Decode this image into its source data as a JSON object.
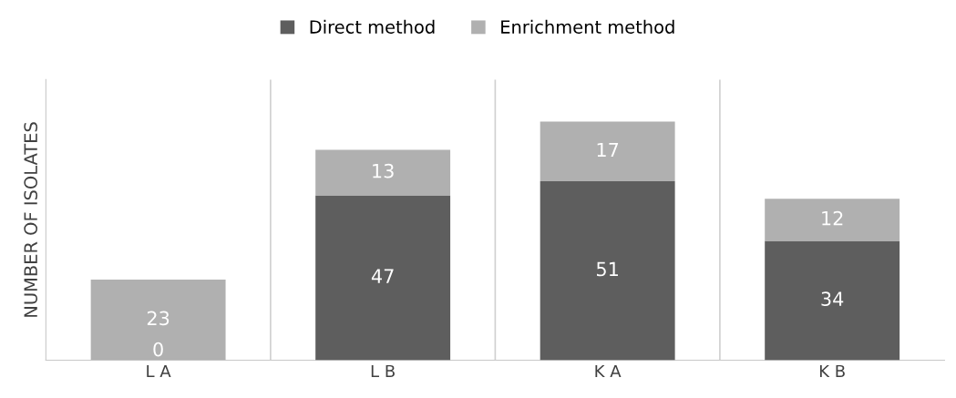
{
  "chart_data": {
    "type": "bar",
    "stacked": true,
    "ylabel": "NUMBER OF ISOLATES",
    "categories": [
      "L A",
      "L B",
      "K A",
      "K B"
    ],
    "series": [
      {
        "name": "Direct method",
        "color": "#5e5e5e",
        "values": [
          0,
          47,
          51,
          34
        ],
        "value_labels": [
          null,
          "47",
          "51",
          "34"
        ]
      },
      {
        "name": "Enrichment method",
        "color": "#b0b0b0",
        "values": [
          23,
          13,
          17,
          12
        ],
        "value_labels": [
          "23",
          "13",
          "17",
          "12"
        ]
      }
    ],
    "annotations": [
      {
        "text": "0",
        "x": "L A",
        "y": 0
      }
    ],
    "ylim": [
      0,
      80
    ],
    "tick_labels": "x",
    "grid": "x",
    "legend": "top"
  }
}
